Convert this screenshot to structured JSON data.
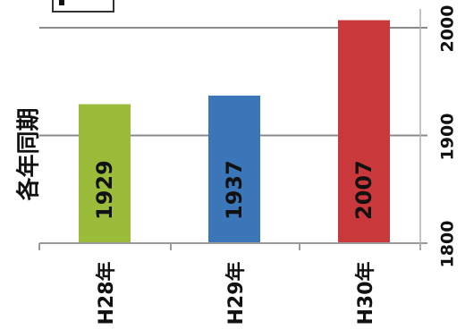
{
  "chart_data": {
    "type": "bar",
    "orientation": "vertical bars, image rotated 90° clockwise",
    "categories": [
      "H28年",
      "H29年",
      "H30年"
    ],
    "values": [
      1929,
      1937,
      2007
    ],
    "data_labels": [
      "1929",
      "1937",
      "2007"
    ],
    "bar_colors": [
      "#9bbb3a",
      "#3a76b8",
      "#c9383a"
    ],
    "ylabel": "各年同期",
    "ylim": [
      1800,
      2000
    ],
    "yticks": [
      1800,
      1900,
      2000
    ],
    "ytick_labels": [
      "1800",
      "1900",
      "2000"
    ],
    "grid": true
  }
}
